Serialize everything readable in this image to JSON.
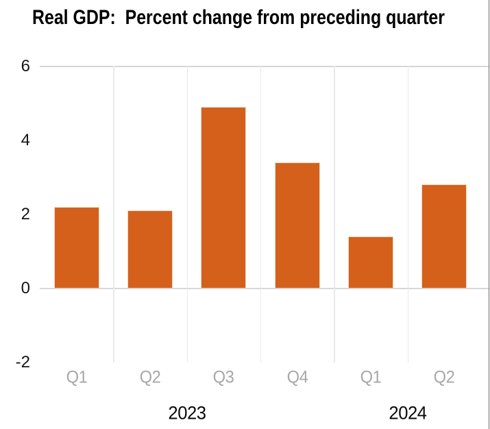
{
  "chart_data": {
    "type": "bar",
    "title": "Real GDP:  Percent change from preceding quarter",
    "categories": [
      "Q1",
      "Q2",
      "Q3",
      "Q4",
      "Q1",
      "Q2"
    ],
    "values": [
      2.2,
      2.1,
      4.9,
      3.4,
      1.4,
      2.8
    ],
    "year_groups": [
      {
        "label": "2023",
        "start": 0,
        "end": 3
      },
      {
        "label": "2024",
        "start": 4,
        "end": 5
      }
    ],
    "y_ticks": [
      "6",
      "4",
      "2",
      "0",
      "-2"
    ],
    "y_tick_values": [
      6,
      4,
      2,
      0,
      -2
    ],
    "ylim": [
      -2,
      6
    ],
    "xlabel": "",
    "ylabel": "",
    "legend": "none",
    "grid": "vertical category separators; horizontal lines at y=6 and y=0 only",
    "bar_color": "#d4601c",
    "quarter_label_color": "#a7a7a7",
    "horizontal_gridline_color": "#d6d6d6",
    "vertical_gridline_color": "#e9e9e9"
  }
}
